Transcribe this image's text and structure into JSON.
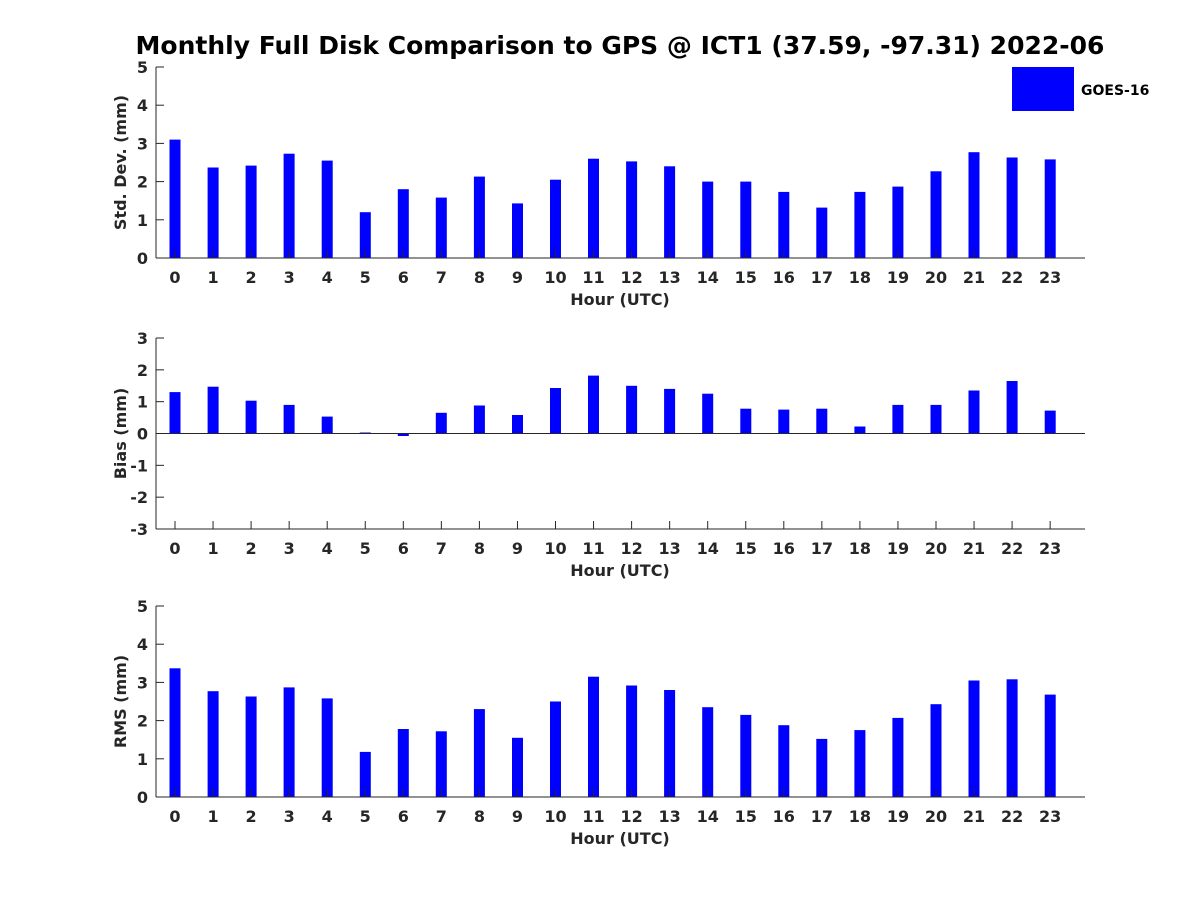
{
  "chart_data": {
    "title": "Monthly Full Disk Comparison to GPS @ ICT1 (37.59, -97.31) 2022-06",
    "legend": {
      "label": "GOES-16",
      "color": "#0000ff",
      "placement": "top-right"
    },
    "bar_color": "#0000ff",
    "panels": [
      {
        "type": "bar",
        "xlabel": "Hour (UTC)",
        "ylabel": "Std. Dev. (mm)",
        "ylim": [
          0,
          5
        ],
        "yticks": [
          "0",
          "1",
          "2",
          "3",
          "4",
          "5"
        ],
        "categories": [
          "0",
          "1",
          "2",
          "3",
          "4",
          "5",
          "6",
          "7",
          "8",
          "9",
          "10",
          "11",
          "12",
          "13",
          "14",
          "15",
          "16",
          "17",
          "18",
          "19",
          "20",
          "21",
          "22",
          "23"
        ],
        "series": [
          {
            "name": "GOES-16",
            "values": [
              3.1,
              2.37,
              2.42,
              2.73,
              2.55,
              1.2,
              1.8,
              1.58,
              2.13,
              1.43,
              2.05,
              2.6,
              2.53,
              2.4,
              2.0,
              2.0,
              1.73,
              1.32,
              1.73,
              1.87,
              2.27,
              2.77,
              2.63,
              2.58
            ]
          }
        ]
      },
      {
        "type": "bar",
        "xlabel": "Hour (UTC)",
        "ylabel": "Bias (mm)",
        "ylim": [
          -3,
          3
        ],
        "yticks": [
          "-3",
          "-2",
          "-1",
          "0",
          "1",
          "2",
          "3"
        ],
        "categories": [
          "0",
          "1",
          "2",
          "3",
          "4",
          "5",
          "6",
          "7",
          "8",
          "9",
          "10",
          "11",
          "12",
          "13",
          "14",
          "15",
          "16",
          "17",
          "18",
          "19",
          "20",
          "21",
          "22",
          "23"
        ],
        "series": [
          {
            "name": "GOES-16",
            "values": [
              1.3,
              1.47,
              1.03,
              0.9,
              0.53,
              0.03,
              -0.08,
              0.65,
              0.88,
              0.58,
              1.43,
              1.82,
              1.5,
              1.4,
              1.25,
              0.78,
              0.75,
              0.78,
              0.22,
              0.9,
              0.9,
              1.35,
              1.65,
              0.72
            ]
          }
        ]
      },
      {
        "type": "bar",
        "xlabel": "Hour (UTC)",
        "ylabel": "RMS (mm)",
        "ylim": [
          0,
          5
        ],
        "yticks": [
          "0",
          "1",
          "2",
          "3",
          "4",
          "5"
        ],
        "categories": [
          "0",
          "1",
          "2",
          "3",
          "4",
          "5",
          "6",
          "7",
          "8",
          "9",
          "10",
          "11",
          "12",
          "13",
          "14",
          "15",
          "16",
          "17",
          "18",
          "19",
          "20",
          "21",
          "22",
          "23"
        ],
        "series": [
          {
            "name": "GOES-16",
            "values": [
              3.37,
              2.77,
              2.63,
              2.87,
              2.58,
              1.18,
              1.78,
              1.72,
              2.3,
              1.55,
              2.5,
              3.15,
              2.92,
              2.8,
              2.35,
              2.15,
              1.88,
              1.52,
              1.75,
              2.07,
              2.43,
              3.05,
              3.08,
              2.68
            ]
          }
        ]
      }
    ]
  }
}
